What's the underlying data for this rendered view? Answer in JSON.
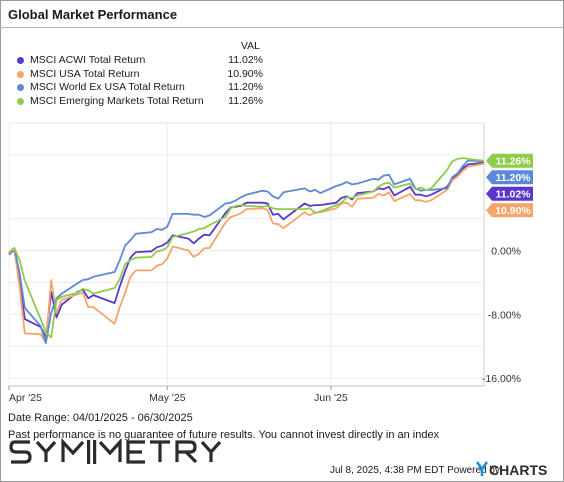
{
  "header": {
    "title": "Global Market Performance",
    "val_label": "VAL"
  },
  "legend": [
    {
      "name": "MSCI ACWI Total Return",
      "value": "11.02%",
      "color": "#5b37c9"
    },
    {
      "name": "MSCI USA Total Return",
      "value": "10.90%",
      "color": "#f7a46b"
    },
    {
      "name": "MSCI World Ex USA Total Return",
      "value": "11.20%",
      "color": "#5b8ad6"
    },
    {
      "name": "MSCI Emerging Markets Total Return",
      "value": "11.26%",
      "color": "#8fcc4a"
    }
  ],
  "chart_data": {
    "type": "line",
    "x_range": [
      "2025-04-01",
      "2025-06-30"
    ],
    "x_ticks": [
      {
        "date": "2025-04-01",
        "label": "Apr '25"
      },
      {
        "date": "2025-05-01",
        "label": "May '25"
      },
      {
        "date": "2025-06-01",
        "label": "Jun '25"
      }
    ],
    "y_ticks": [
      {
        "value": 0,
        "label": "0.00%"
      },
      {
        "value": -8,
        "label": "-8.00%"
      },
      {
        "value": -16,
        "label": "-16.00%"
      }
    ],
    "ylim": [
      -17,
      16
    ],
    "grid": true,
    "series": [
      {
        "name": "MSCI ACWI Total Return",
        "color": "#5b37c9",
        "end_label": "11.02%",
        "points": [
          [
            "2025-04-01",
            -0.5
          ],
          [
            "2025-04-02",
            0.1
          ],
          [
            "2025-04-03",
            -4.0
          ],
          [
            "2025-04-04",
            -8.6
          ],
          [
            "2025-04-07",
            -9.6
          ],
          [
            "2025-04-08",
            -10.9
          ],
          [
            "2025-04-09",
            -5.2
          ],
          [
            "2025-04-10",
            -8.4
          ],
          [
            "2025-04-11",
            -6.8
          ],
          [
            "2025-04-14",
            -5.2
          ],
          [
            "2025-04-15",
            -4.9
          ],
          [
            "2025-04-16",
            -6.0
          ],
          [
            "2025-04-17",
            -5.6
          ],
          [
            "2025-04-21",
            -6.6
          ],
          [
            "2025-04-22",
            -4.5
          ],
          [
            "2025-04-23",
            -2.6
          ],
          [
            "2025-04-24",
            -0.9
          ],
          [
            "2025-04-25",
            -0.2
          ],
          [
            "2025-04-28",
            -0.1
          ],
          [
            "2025-04-29",
            0.4
          ],
          [
            "2025-04-30",
            0.6
          ],
          [
            "2025-05-01",
            1.0
          ],
          [
            "2025-05-02",
            1.9
          ],
          [
            "2025-05-05",
            1.5
          ],
          [
            "2025-05-06",
            0.9
          ],
          [
            "2025-05-07",
            1.5
          ],
          [
            "2025-05-08",
            2.0
          ],
          [
            "2025-05-09",
            1.9
          ],
          [
            "2025-05-12",
            4.7
          ],
          [
            "2025-05-13",
            5.4
          ],
          [
            "2025-05-14",
            5.5
          ],
          [
            "2025-05-15",
            5.6
          ],
          [
            "2025-05-16",
            6.0
          ],
          [
            "2025-05-19",
            6.0
          ],
          [
            "2025-05-20",
            5.9
          ],
          [
            "2025-05-21",
            4.5
          ],
          [
            "2025-05-22",
            4.6
          ],
          [
            "2025-05-23",
            3.9
          ],
          [
            "2025-05-27",
            5.9
          ],
          [
            "2025-05-28",
            5.6
          ],
          [
            "2025-05-29",
            5.7
          ],
          [
            "2025-05-30",
            5.7
          ],
          [
            "2025-06-02",
            6.0
          ],
          [
            "2025-06-03",
            6.6
          ],
          [
            "2025-06-04",
            6.8
          ],
          [
            "2025-06-05",
            6.4
          ],
          [
            "2025-06-06",
            7.2
          ],
          [
            "2025-06-09",
            7.4
          ],
          [
            "2025-06-10",
            7.8
          ],
          [
            "2025-06-11",
            7.7
          ],
          [
            "2025-06-12",
            8.0
          ],
          [
            "2025-06-13",
            6.9
          ],
          [
            "2025-06-16",
            8.0
          ],
          [
            "2025-06-17",
            7.0
          ],
          [
            "2025-06-18",
            7.0
          ],
          [
            "2025-06-19",
            6.8
          ],
          [
            "2025-06-20",
            7.0
          ],
          [
            "2025-06-23",
            8.0
          ],
          [
            "2025-06-24",
            9.0
          ],
          [
            "2025-06-25",
            9.6
          ],
          [
            "2025-06-26",
            10.3
          ],
          [
            "2025-06-27",
            10.8
          ],
          [
            "2025-06-30",
            11.02
          ]
        ]
      },
      {
        "name": "MSCI USA Total Return",
        "color": "#f7a46b",
        "end_label": "10.90%",
        "points": [
          [
            "2025-04-01",
            -0.4
          ],
          [
            "2025-04-02",
            0.2
          ],
          [
            "2025-04-03",
            -4.6
          ],
          [
            "2025-04-04",
            -10.4
          ],
          [
            "2025-04-07",
            -10.5
          ],
          [
            "2025-04-08",
            -11.6
          ],
          [
            "2025-04-09",
            -3.7
          ],
          [
            "2025-04-10",
            -7.8
          ],
          [
            "2025-04-11",
            -6.2
          ],
          [
            "2025-04-14",
            -5.5
          ],
          [
            "2025-04-15",
            -5.3
          ],
          [
            "2025-04-16",
            -7.1
          ],
          [
            "2025-04-17",
            -7.1
          ],
          [
            "2025-04-21",
            -9.2
          ],
          [
            "2025-04-22",
            -7.1
          ],
          [
            "2025-04-23",
            -5.3
          ],
          [
            "2025-04-24",
            -3.3
          ],
          [
            "2025-04-25",
            -2.5
          ],
          [
            "2025-04-28",
            -2.5
          ],
          [
            "2025-04-29",
            -1.9
          ],
          [
            "2025-04-30",
            -1.7
          ],
          [
            "2025-05-01",
            -1.0
          ],
          [
            "2025-05-02",
            0.5
          ],
          [
            "2025-05-05",
            0.0
          ],
          [
            "2025-05-06",
            -0.8
          ],
          [
            "2025-05-07",
            -0.4
          ],
          [
            "2025-05-08",
            0.3
          ],
          [
            "2025-05-09",
            0.3
          ],
          [
            "2025-05-12",
            3.5
          ],
          [
            "2025-05-13",
            4.2
          ],
          [
            "2025-05-14",
            4.4
          ],
          [
            "2025-05-15",
            4.7
          ],
          [
            "2025-05-16",
            5.2
          ],
          [
            "2025-05-19",
            5.3
          ],
          [
            "2025-05-20",
            5.1
          ],
          [
            "2025-05-21",
            3.4
          ],
          [
            "2025-05-22",
            3.3
          ],
          [
            "2025-05-23",
            2.8
          ],
          [
            "2025-05-27",
            4.8
          ],
          [
            "2025-05-28",
            4.4
          ],
          [
            "2025-05-29",
            4.8
          ],
          [
            "2025-05-30",
            4.8
          ],
          [
            "2025-06-02",
            5.3
          ],
          [
            "2025-06-03",
            5.9
          ],
          [
            "2025-06-04",
            6.0
          ],
          [
            "2025-06-05",
            5.5
          ],
          [
            "2025-06-06",
            6.5
          ],
          [
            "2025-06-09",
            6.6
          ],
          [
            "2025-06-10",
            7.1
          ],
          [
            "2025-06-11",
            6.9
          ],
          [
            "2025-06-12",
            7.3
          ],
          [
            "2025-06-13",
            6.2
          ],
          [
            "2025-06-16",
            7.1
          ],
          [
            "2025-06-17",
            6.3
          ],
          [
            "2025-06-18",
            6.3
          ],
          [
            "2025-06-19",
            6.1
          ],
          [
            "2025-06-20",
            6.3
          ],
          [
            "2025-06-23",
            7.6
          ],
          [
            "2025-06-24",
            8.8
          ],
          [
            "2025-06-25",
            9.3
          ],
          [
            "2025-06-26",
            10.0
          ],
          [
            "2025-06-27",
            10.5
          ],
          [
            "2025-06-30",
            10.9
          ]
        ]
      },
      {
        "name": "MSCI World Ex USA Total Return",
        "color": "#5b8ad6",
        "end_label": "11.20%",
        "points": [
          [
            "2025-04-01",
            -0.3
          ],
          [
            "2025-04-02",
            0.3
          ],
          [
            "2025-04-03",
            -2.8
          ],
          [
            "2025-04-04",
            -7.2
          ],
          [
            "2025-04-07",
            -9.5
          ],
          [
            "2025-04-08",
            -11.6
          ],
          [
            "2025-04-09",
            -7.8
          ],
          [
            "2025-04-10",
            -6.0
          ],
          [
            "2025-04-11",
            -5.4
          ],
          [
            "2025-04-14",
            -4.1
          ],
          [
            "2025-04-15",
            -3.7
          ],
          [
            "2025-04-16",
            -3.6
          ],
          [
            "2025-04-17",
            -3.3
          ],
          [
            "2025-04-21",
            -2.7
          ],
          [
            "2025-04-22",
            -1.2
          ],
          [
            "2025-04-23",
            0.6
          ],
          [
            "2025-04-24",
            1.3
          ],
          [
            "2025-04-25",
            2.1
          ],
          [
            "2025-04-28",
            2.3
          ],
          [
            "2025-04-29",
            2.7
          ],
          [
            "2025-04-30",
            2.6
          ],
          [
            "2025-05-01",
            3.0
          ],
          [
            "2025-05-02",
            4.6
          ],
          [
            "2025-05-05",
            4.6
          ],
          [
            "2025-05-06",
            4.5
          ],
          [
            "2025-05-07",
            4.5
          ],
          [
            "2025-05-08",
            4.2
          ],
          [
            "2025-05-09",
            4.4
          ],
          [
            "2025-05-12",
            5.9
          ],
          [
            "2025-05-13",
            6.0
          ],
          [
            "2025-05-14",
            6.3
          ],
          [
            "2025-05-15",
            6.7
          ],
          [
            "2025-05-16",
            7.0
          ],
          [
            "2025-05-19",
            7.5
          ],
          [
            "2025-05-20",
            7.4
          ],
          [
            "2025-05-21",
            6.8
          ],
          [
            "2025-05-22",
            6.5
          ],
          [
            "2025-05-23",
            7.3
          ],
          [
            "2025-05-27",
            7.8
          ],
          [
            "2025-05-28",
            7.4
          ],
          [
            "2025-05-29",
            7.6
          ],
          [
            "2025-05-30",
            7.2
          ],
          [
            "2025-06-02",
            8.1
          ],
          [
            "2025-06-03",
            8.3
          ],
          [
            "2025-06-04",
            8.6
          ],
          [
            "2025-06-05",
            8.3
          ],
          [
            "2025-06-06",
            8.4
          ],
          [
            "2025-06-09",
            9.0
          ],
          [
            "2025-06-10",
            8.9
          ],
          [
            "2025-06-11",
            9.4
          ],
          [
            "2025-06-12",
            9.5
          ],
          [
            "2025-06-13",
            8.3
          ],
          [
            "2025-06-16",
            9.0
          ],
          [
            "2025-06-17",
            7.8
          ],
          [
            "2025-06-18",
            7.5
          ],
          [
            "2025-06-19",
            7.6
          ],
          [
            "2025-06-20",
            7.6
          ],
          [
            "2025-06-23",
            7.8
          ],
          [
            "2025-06-24",
            9.2
          ],
          [
            "2025-06-25",
            9.7
          ],
          [
            "2025-06-26",
            10.6
          ],
          [
            "2025-06-27",
            11.3
          ],
          [
            "2025-06-30",
            11.2
          ]
        ]
      },
      {
        "name": "MSCI Emerging Markets Total Return",
        "color": "#8fcc4a",
        "end_label": "11.26%",
        "points": [
          [
            "2025-04-01",
            -0.2
          ],
          [
            "2025-04-02",
            0.3
          ],
          [
            "2025-04-03",
            -1.2
          ],
          [
            "2025-04-04",
            -3.8
          ],
          [
            "2025-04-07",
            -8.6
          ],
          [
            "2025-04-08",
            -10.3
          ],
          [
            "2025-04-09",
            -10.9
          ],
          [
            "2025-04-10",
            -6.2
          ],
          [
            "2025-04-11",
            -5.8
          ],
          [
            "2025-04-14",
            -5.3
          ],
          [
            "2025-04-15",
            -4.8
          ],
          [
            "2025-04-16",
            -5.0
          ],
          [
            "2025-04-17",
            -5.4
          ],
          [
            "2025-04-21",
            -4.7
          ],
          [
            "2025-04-22",
            -3.6
          ],
          [
            "2025-04-23",
            -1.7
          ],
          [
            "2025-04-24",
            -1.2
          ],
          [
            "2025-04-25",
            -0.9
          ],
          [
            "2025-04-28",
            -0.8
          ],
          [
            "2025-04-29",
            -0.1
          ],
          [
            "2025-04-30",
            0.0
          ],
          [
            "2025-05-01",
            0.4
          ],
          [
            "2025-05-02",
            1.7
          ],
          [
            "2025-05-05",
            2.2
          ],
          [
            "2025-05-06",
            2.4
          ],
          [
            "2025-05-07",
            2.7
          ],
          [
            "2025-05-08",
            2.8
          ],
          [
            "2025-05-09",
            3.2
          ],
          [
            "2025-05-12",
            4.2
          ],
          [
            "2025-05-13",
            5.3
          ],
          [
            "2025-05-14",
            5.6
          ],
          [
            "2025-05-15",
            5.7
          ],
          [
            "2025-05-16",
            5.6
          ],
          [
            "2025-05-19",
            5.5
          ],
          [
            "2025-05-20",
            5.6
          ],
          [
            "2025-05-21",
            5.3
          ],
          [
            "2025-05-22",
            5.2
          ],
          [
            "2025-05-23",
            5.2
          ],
          [
            "2025-05-27",
            5.2
          ],
          [
            "2025-05-28",
            5.3
          ],
          [
            "2025-05-29",
            4.7
          ],
          [
            "2025-05-30",
            4.9
          ],
          [
            "2025-06-02",
            5.7
          ],
          [
            "2025-06-03",
            6.0
          ],
          [
            "2025-06-04",
            6.7
          ],
          [
            "2025-06-05",
            6.6
          ],
          [
            "2025-06-06",
            6.9
          ],
          [
            "2025-06-09",
            7.4
          ],
          [
            "2025-06-10",
            8.0
          ],
          [
            "2025-06-11",
            8.4
          ],
          [
            "2025-06-12",
            8.5
          ],
          [
            "2025-06-13",
            7.9
          ],
          [
            "2025-06-16",
            8.4
          ],
          [
            "2025-06-17",
            7.7
          ],
          [
            "2025-06-18",
            7.9
          ],
          [
            "2025-06-19",
            7.6
          ],
          [
            "2025-06-20",
            7.8
          ],
          [
            "2025-06-23",
            10.1
          ],
          [
            "2025-06-24",
            11.2
          ],
          [
            "2025-06-25",
            11.5
          ],
          [
            "2025-06-26",
            11.6
          ],
          [
            "2025-06-27",
            11.5
          ],
          [
            "2025-06-30",
            11.26
          ]
        ]
      }
    ]
  },
  "footer": {
    "date_range": "Date Range: 04/01/2025 - 06/30/2025",
    "disclaimer": "Past performance is no guarantee of future results. You cannot invest directly in an index",
    "logo_text": "SYMMETRY",
    "timestamp": "Jul 8, 2025, 4:38 PM EDT Powered by",
    "ycharts_text": "CHARTS"
  }
}
